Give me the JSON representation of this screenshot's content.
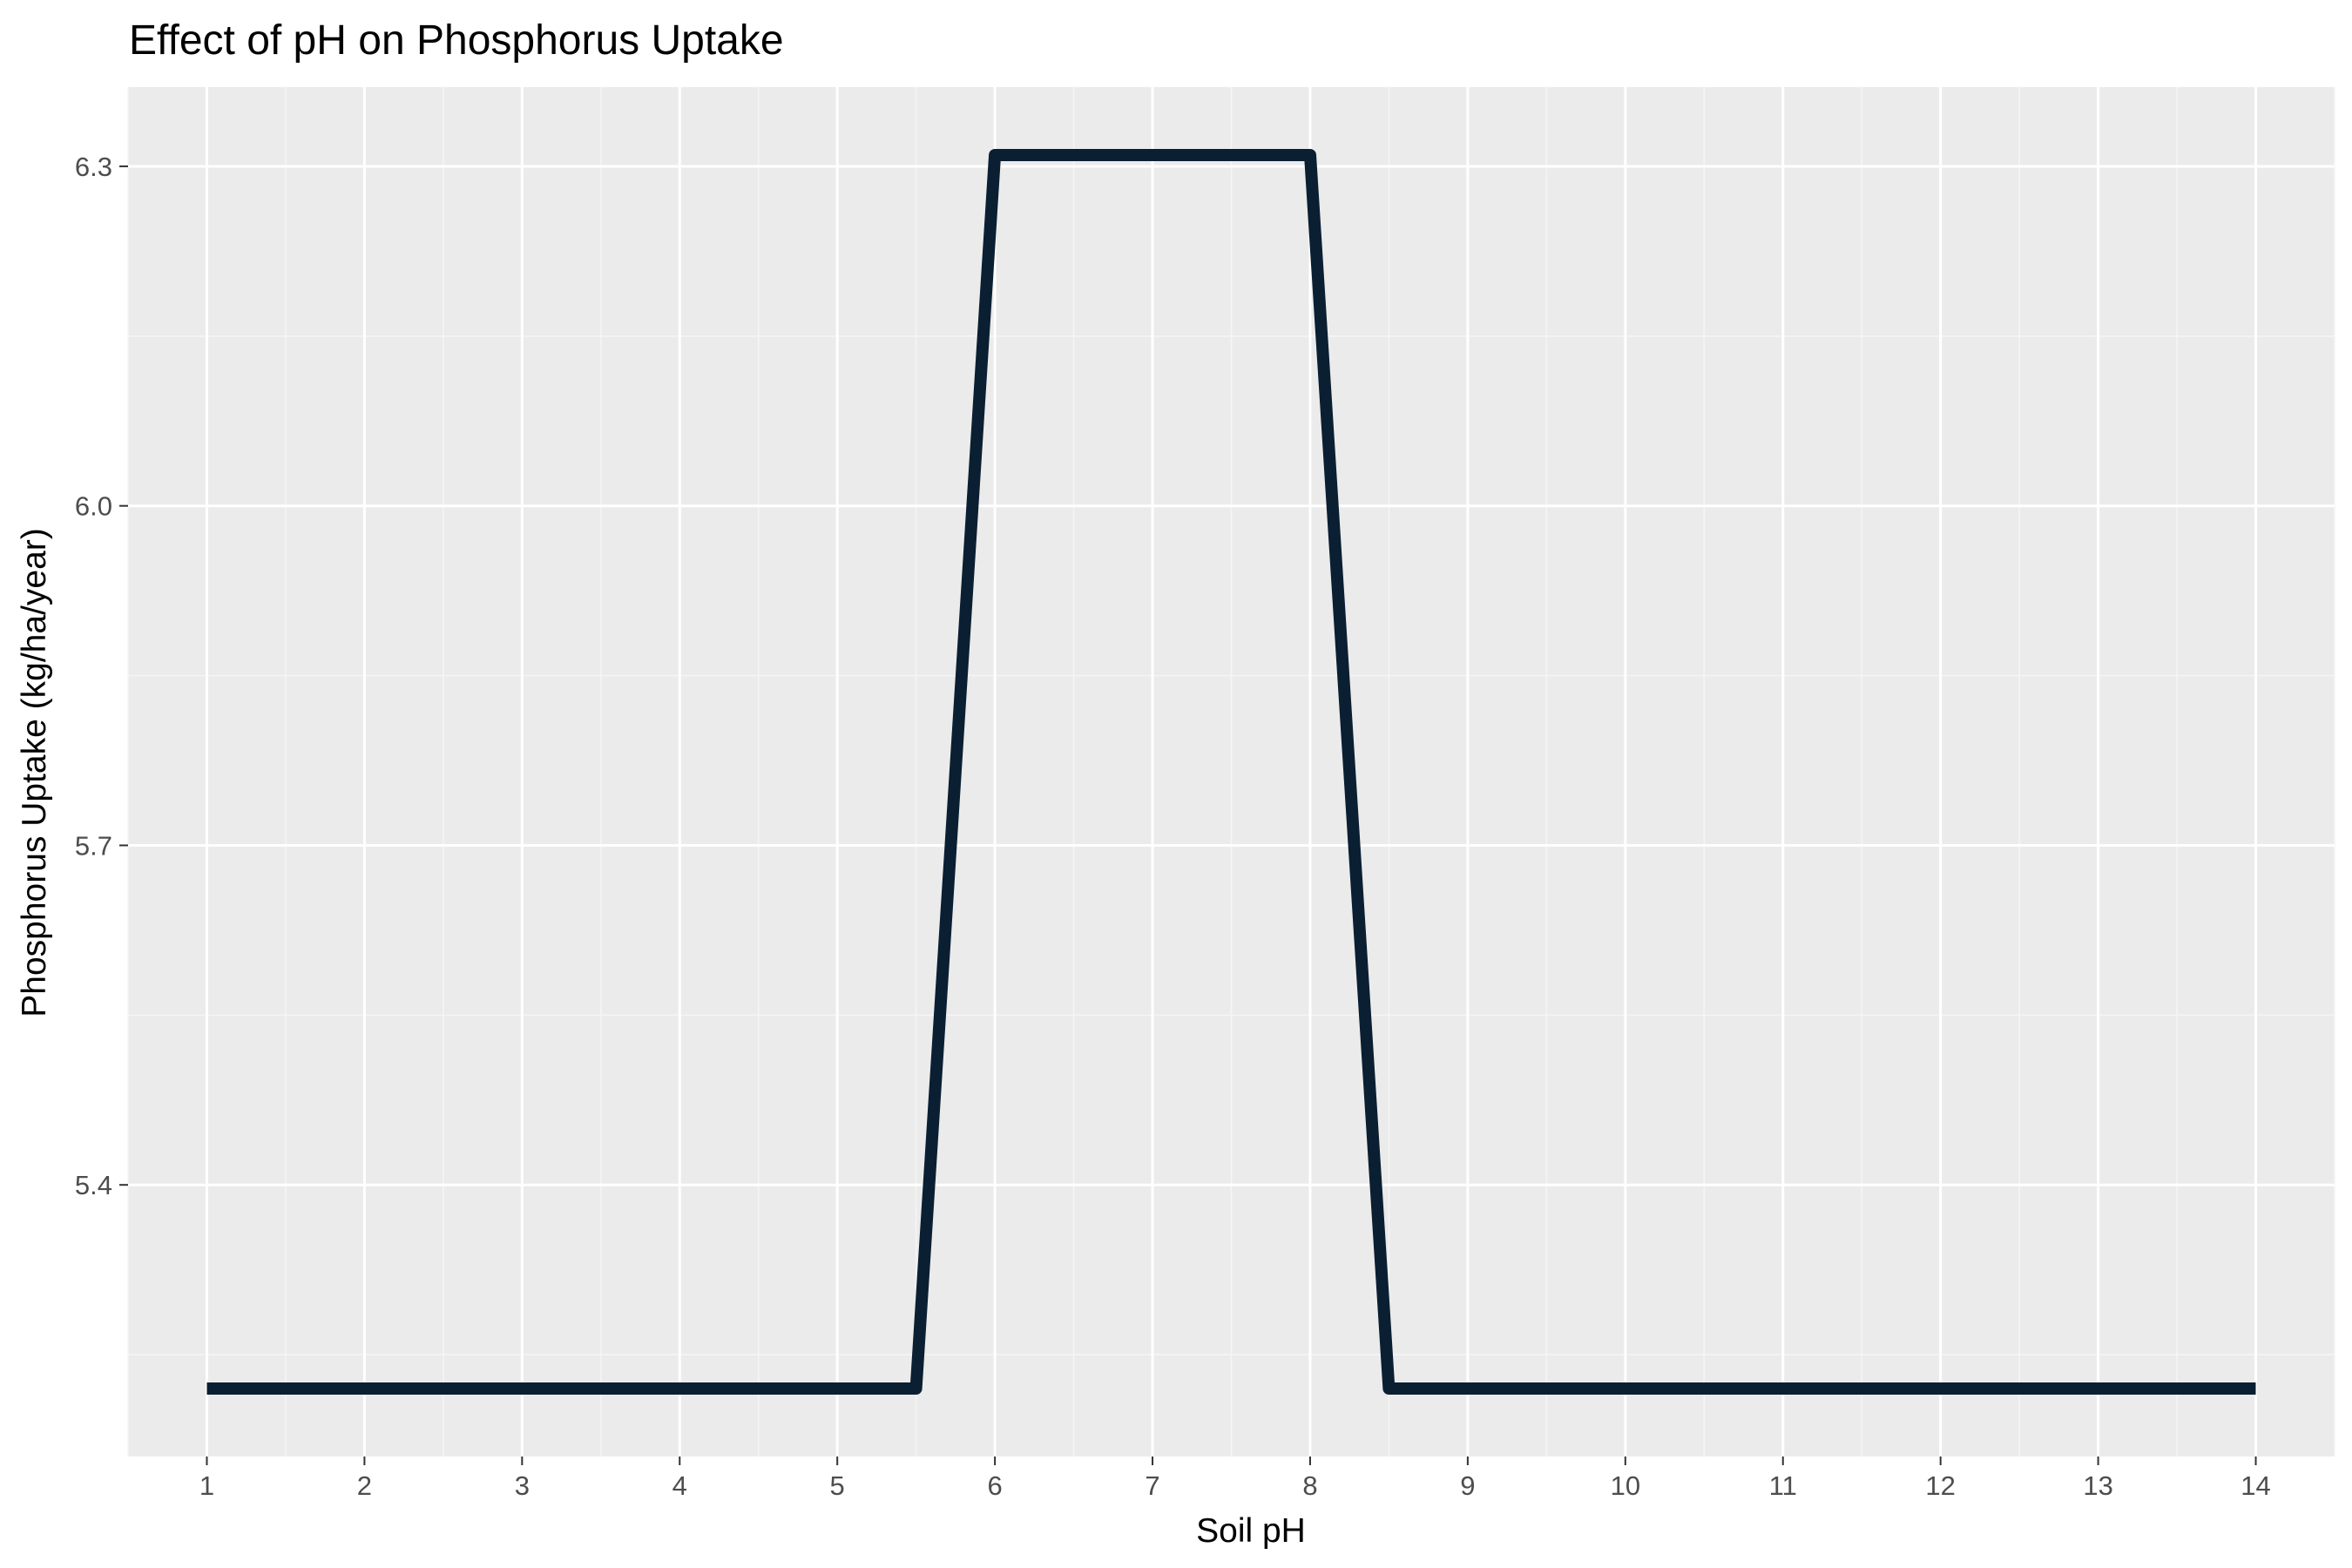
{
  "chart_data": {
    "type": "line",
    "title": "Effect of pH on Phosphorus Uptake",
    "xlabel": "Soil pH",
    "ylabel": "Phosphorus Uptake (kg/ha/year)",
    "x_ticks": [
      1,
      2,
      3,
      4,
      5,
      6,
      7,
      8,
      9,
      10,
      11,
      12,
      13,
      14
    ],
    "y_ticks": [
      "5.4",
      "5.7",
      "6.0",
      "6.3"
    ],
    "xlim": [
      0.5,
      14.5
    ],
    "ylim": [
      5.16,
      6.37
    ],
    "grid": true,
    "colors": {
      "panel_background": "#ebebeb",
      "grid_major": "#ffffff",
      "grid_minor": "#f5f5f5",
      "line": "#0b1f33"
    },
    "series": [
      {
        "x": [
          1,
          5.5,
          6,
          8,
          8.5,
          14
        ],
        "y": [
          5.22,
          5.22,
          6.31,
          6.31,
          5.22,
          5.22
        ]
      }
    ]
  }
}
